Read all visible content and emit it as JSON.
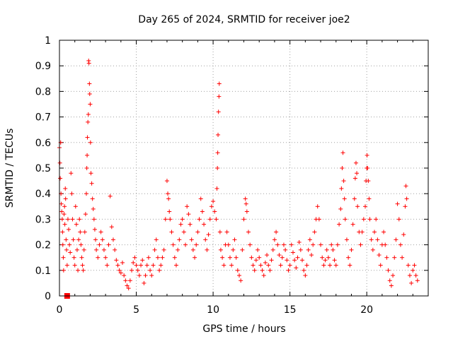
{
  "chart_data": {
    "type": "scatter",
    "title": "Day 265 of 2024, SRMTID for receiver joe2",
    "xlabel": "GPS time / hours",
    "ylabel": "SRMTID / TECUs",
    "xlim": [
      0,
      24
    ],
    "ylim": [
      0,
      1
    ],
    "xticks": [
      0,
      5,
      10,
      15,
      20
    ],
    "yticks": [
      0,
      0.1,
      0.2,
      0.3,
      0.4,
      0.5,
      0.6,
      0.7,
      0.8,
      0.9,
      1
    ],
    "xtick_labels": [
      "0",
      "5",
      "10",
      "15",
      "20"
    ],
    "ytick_labels": [
      "0",
      "0.1",
      "0.2",
      "0.3",
      "0.4",
      "0.5",
      "0.6",
      "0.7",
      "0.8",
      "0.9",
      "1"
    ],
    "grid": true,
    "series_color": "#ff0000",
    "marker": "plus",
    "series": [
      {
        "name": "SRMTID",
        "points": [
          [
            0.0,
            0.58
          ],
          [
            0.03,
            0.52
          ],
          [
            0.05,
            0.46
          ],
          [
            0.08,
            0.6
          ],
          [
            0.1,
            0.4
          ],
          [
            0.12,
            0.36
          ],
          [
            0.15,
            0.33
          ],
          [
            0.18,
            0.3
          ],
          [
            0.2,
            0.25
          ],
          [
            0.22,
            0.2
          ],
          [
            0.25,
            0.15
          ],
          [
            0.27,
            0.1
          ],
          [
            0.3,
            0.32
          ],
          [
            0.33,
            0.35
          ],
          [
            0.35,
            0.28
          ],
          [
            0.38,
            0.42
          ],
          [
            0.4,
            0.38
          ],
          [
            0.43,
            0.22
          ],
          [
            0.46,
            0.18
          ],
          [
            0.5,
            0.12
          ],
          [
            0.55,
            0.3
          ],
          [
            0.6,
            0.26
          ],
          [
            0.65,
            0.2
          ],
          [
            0.7,
            0.17
          ],
          [
            0.75,
            0.48
          ],
          [
            0.8,
            0.4
          ],
          [
            0.85,
            0.3
          ],
          [
            0.9,
            0.22
          ],
          [
            0.95,
            0.15
          ],
          [
            1.0,
            0.12
          ],
          [
            1.05,
            0.35
          ],
          [
            1.1,
            0.28
          ],
          [
            1.15,
            0.18
          ],
          [
            1.2,
            0.1
          ],
          [
            1.25,
            0.22
          ],
          [
            1.3,
            0.3
          ],
          [
            1.35,
            0.25
          ],
          [
            1.4,
            0.2
          ],
          [
            1.45,
            0.15
          ],
          [
            1.5,
            0.12
          ],
          [
            1.55,
            0.1
          ],
          [
            1.6,
            0.18
          ],
          [
            1.65,
            0.25
          ],
          [
            1.7,
            0.32
          ],
          [
            1.75,
            0.4
          ],
          [
            1.78,
            0.5
          ],
          [
            1.8,
            0.55
          ],
          [
            1.82,
            0.62
          ],
          [
            1.85,
            0.68
          ],
          [
            1.88,
            0.71
          ],
          [
            1.9,
            0.92
          ],
          [
            1.92,
            0.91
          ],
          [
            1.95,
            0.83
          ],
          [
            1.97,
            0.79
          ],
          [
            2.0,
            0.75
          ],
          [
            2.02,
            0.6
          ],
          [
            2.05,
            0.48
          ],
          [
            2.1,
            0.44
          ],
          [
            2.15,
            0.38
          ],
          [
            2.2,
            0.34
          ],
          [
            2.25,
            0.3
          ],
          [
            2.3,
            0.26
          ],
          [
            2.35,
            0.22
          ],
          [
            2.4,
            0.18
          ],
          [
            2.5,
            0.15
          ],
          [
            2.6,
            0.2
          ],
          [
            2.7,
            0.25
          ],
          [
            2.8,
            0.22
          ],
          [
            2.9,
            0.18
          ],
          [
            3.0,
            0.15
          ],
          [
            3.1,
            0.12
          ],
          [
            3.2,
            0.2
          ],
          [
            3.3,
            0.39
          ],
          [
            3.4,
            0.27
          ],
          [
            3.5,
            0.22
          ],
          [
            3.6,
            0.18
          ],
          [
            3.7,
            0.14
          ],
          [
            3.8,
            0.12
          ],
          [
            3.9,
            0.1
          ],
          [
            4.0,
            0.09
          ],
          [
            4.1,
            0.13
          ],
          [
            4.2,
            0.08
          ],
          [
            4.3,
            0.06
          ],
          [
            4.4,
            0.04
          ],
          [
            4.5,
            0.03
          ],
          [
            4.6,
            0.06
          ],
          [
            4.7,
            0.1
          ],
          [
            4.8,
            0.13
          ],
          [
            4.9,
            0.15
          ],
          [
            5.0,
            0.12
          ],
          [
            5.1,
            0.1
          ],
          [
            5.2,
            0.08
          ],
          [
            5.3,
            0.12
          ],
          [
            5.4,
            0.14
          ],
          [
            5.5,
            0.05
          ],
          [
            5.6,
            0.08
          ],
          [
            5.7,
            0.12
          ],
          [
            5.8,
            0.15
          ],
          [
            5.9,
            0.1
          ],
          [
            6.0,
            0.08
          ],
          [
            6.1,
            0.12
          ],
          [
            6.2,
            0.18
          ],
          [
            6.3,
            0.22
          ],
          [
            6.4,
            0.15
          ],
          [
            6.5,
            0.1
          ],
          [
            6.6,
            0.12
          ],
          [
            6.7,
            0.15
          ],
          [
            6.8,
            0.18
          ],
          [
            6.9,
            0.3
          ],
          [
            7.0,
            0.45
          ],
          [
            7.05,
            0.4
          ],
          [
            7.1,
            0.38
          ],
          [
            7.15,
            0.33
          ],
          [
            7.2,
            0.3
          ],
          [
            7.3,
            0.25
          ],
          [
            7.4,
            0.2
          ],
          [
            7.5,
            0.15
          ],
          [
            7.6,
            0.12
          ],
          [
            7.7,
            0.18
          ],
          [
            7.8,
            0.22
          ],
          [
            7.9,
            0.28
          ],
          [
            8.0,
            0.3
          ],
          [
            8.1,
            0.25
          ],
          [
            8.2,
            0.2
          ],
          [
            8.3,
            0.35
          ],
          [
            8.4,
            0.32
          ],
          [
            8.5,
            0.28
          ],
          [
            8.6,
            0.22
          ],
          [
            8.7,
            0.18
          ],
          [
            8.8,
            0.15
          ],
          [
            8.9,
            0.2
          ],
          [
            9.0,
            0.25
          ],
          [
            9.1,
            0.3
          ],
          [
            9.2,
            0.38
          ],
          [
            9.3,
            0.33
          ],
          [
            9.4,
            0.28
          ],
          [
            9.5,
            0.22
          ],
          [
            9.6,
            0.18
          ],
          [
            9.7,
            0.24
          ],
          [
            9.8,
            0.3
          ],
          [
            9.9,
            0.35
          ],
          [
            10.0,
            0.37
          ],
          [
            10.1,
            0.33
          ],
          [
            10.2,
            0.3
          ],
          [
            10.25,
            0.42
          ],
          [
            10.28,
            0.5
          ],
          [
            10.3,
            0.56
          ],
          [
            10.32,
            0.63
          ],
          [
            10.35,
            0.72
          ],
          [
            10.38,
            0.78
          ],
          [
            10.4,
            0.83
          ],
          [
            10.45,
            0.25
          ],
          [
            10.5,
            0.18
          ],
          [
            10.6,
            0.15
          ],
          [
            10.7,
            0.12
          ],
          [
            10.8,
            0.2
          ],
          [
            10.9,
            0.25
          ],
          [
            11.0,
            0.2
          ],
          [
            11.1,
            0.15
          ],
          [
            11.2,
            0.12
          ],
          [
            11.3,
            0.18
          ],
          [
            11.4,
            0.22
          ],
          [
            11.5,
            0.15
          ],
          [
            11.6,
            0.1
          ],
          [
            11.7,
            0.08
          ],
          [
            11.8,
            0.06
          ],
          [
            11.9,
            0.18
          ],
          [
            12.0,
            0.3
          ],
          [
            12.1,
            0.38
          ],
          [
            12.15,
            0.36
          ],
          [
            12.2,
            0.33
          ],
          [
            12.3,
            0.25
          ],
          [
            12.4,
            0.2
          ],
          [
            12.5,
            0.15
          ],
          [
            12.6,
            0.12
          ],
          [
            12.7,
            0.1
          ],
          [
            12.8,
            0.14
          ],
          [
            12.9,
            0.18
          ],
          [
            13.0,
            0.15
          ],
          [
            13.1,
            0.12
          ],
          [
            13.2,
            0.1
          ],
          [
            13.3,
            0.08
          ],
          [
            13.4,
            0.13
          ],
          [
            13.5,
            0.16
          ],
          [
            13.6,
            0.12
          ],
          [
            13.7,
            0.1
          ],
          [
            13.8,
            0.14
          ],
          [
            13.9,
            0.18
          ],
          [
            14.0,
            0.22
          ],
          [
            14.1,
            0.25
          ],
          [
            14.2,
            0.2
          ],
          [
            14.3,
            0.16
          ],
          [
            14.4,
            0.12
          ],
          [
            14.5,
            0.15
          ],
          [
            14.6,
            0.2
          ],
          [
            14.7,
            0.18
          ],
          [
            14.8,
            0.14
          ],
          [
            14.9,
            0.1
          ],
          [
            15.0,
            0.12
          ],
          [
            15.1,
            0.2
          ],
          [
            15.2,
            0.17
          ],
          [
            15.3,
            0.14
          ],
          [
            15.4,
            0.11
          ],
          [
            15.5,
            0.15
          ],
          [
            15.6,
            0.21
          ],
          [
            15.7,
            0.18
          ],
          [
            15.8,
            0.14
          ],
          [
            15.9,
            0.1
          ],
          [
            16.0,
            0.08
          ],
          [
            16.1,
            0.12
          ],
          [
            16.2,
            0.18
          ],
          [
            16.3,
            0.22
          ],
          [
            16.4,
            0.16
          ],
          [
            16.5,
            0.2
          ],
          [
            16.6,
            0.25
          ],
          [
            16.7,
            0.3
          ],
          [
            16.8,
            0.35
          ],
          [
            16.9,
            0.3
          ],
          [
            17.0,
            0.2
          ],
          [
            17.1,
            0.15
          ],
          [
            17.2,
            0.12
          ],
          [
            17.3,
            0.14
          ],
          [
            17.4,
            0.18
          ],
          [
            17.5,
            0.15
          ],
          [
            17.6,
            0.12
          ],
          [
            17.7,
            0.2
          ],
          [
            17.8,
            0.18
          ],
          [
            17.9,
            0.14
          ],
          [
            18.0,
            0.12
          ],
          [
            18.1,
            0.2
          ],
          [
            18.2,
            0.28
          ],
          [
            18.3,
            0.34
          ],
          [
            18.35,
            0.42
          ],
          [
            18.4,
            0.5
          ],
          [
            18.45,
            0.56
          ],
          [
            18.5,
            0.45
          ],
          [
            18.55,
            0.38
          ],
          [
            18.6,
            0.3
          ],
          [
            18.7,
            0.22
          ],
          [
            18.8,
            0.15
          ],
          [
            18.9,
            0.12
          ],
          [
            19.0,
            0.18
          ],
          [
            19.1,
            0.28
          ],
          [
            19.2,
            0.38
          ],
          [
            19.25,
            0.46
          ],
          [
            19.3,
            0.52
          ],
          [
            19.35,
            0.48
          ],
          [
            19.4,
            0.35
          ],
          [
            19.5,
            0.25
          ],
          [
            19.6,
            0.2
          ],
          [
            19.7,
            0.25
          ],
          [
            19.8,
            0.3
          ],
          [
            19.9,
            0.35
          ],
          [
            19.95,
            0.45
          ],
          [
            20.0,
            0.5
          ],
          [
            20.02,
            0.55
          ],
          [
            20.05,
            0.5
          ],
          [
            20.1,
            0.45
          ],
          [
            20.15,
            0.38
          ],
          [
            20.2,
            0.3
          ],
          [
            20.3,
            0.22
          ],
          [
            20.4,
            0.18
          ],
          [
            20.5,
            0.25
          ],
          [
            20.6,
            0.3
          ],
          [
            20.7,
            0.22
          ],
          [
            20.8,
            0.16
          ],
          [
            20.9,
            0.12
          ],
          [
            21.0,
            0.2
          ],
          [
            21.1,
            0.25
          ],
          [
            21.2,
            0.2
          ],
          [
            21.3,
            0.15
          ],
          [
            21.4,
            0.1
          ],
          [
            21.5,
            0.06
          ],
          [
            21.6,
            0.04
          ],
          [
            21.7,
            0.08
          ],
          [
            21.8,
            0.15
          ],
          [
            21.9,
            0.22
          ],
          [
            22.0,
            0.36
          ],
          [
            22.1,
            0.3
          ],
          [
            22.2,
            0.2
          ],
          [
            22.3,
            0.15
          ],
          [
            22.4,
            0.24
          ],
          [
            22.5,
            0.35
          ],
          [
            22.55,
            0.43
          ],
          [
            22.6,
            0.38
          ],
          [
            22.7,
            0.12
          ],
          [
            22.8,
            0.08
          ],
          [
            22.9,
            0.05
          ],
          [
            23.0,
            0.1
          ],
          [
            23.1,
            0.12
          ],
          [
            23.2,
            0.08
          ],
          [
            23.3,
            0.06
          ]
        ]
      }
    ],
    "marker_square": [
      0.5,
      0.0
    ]
  }
}
